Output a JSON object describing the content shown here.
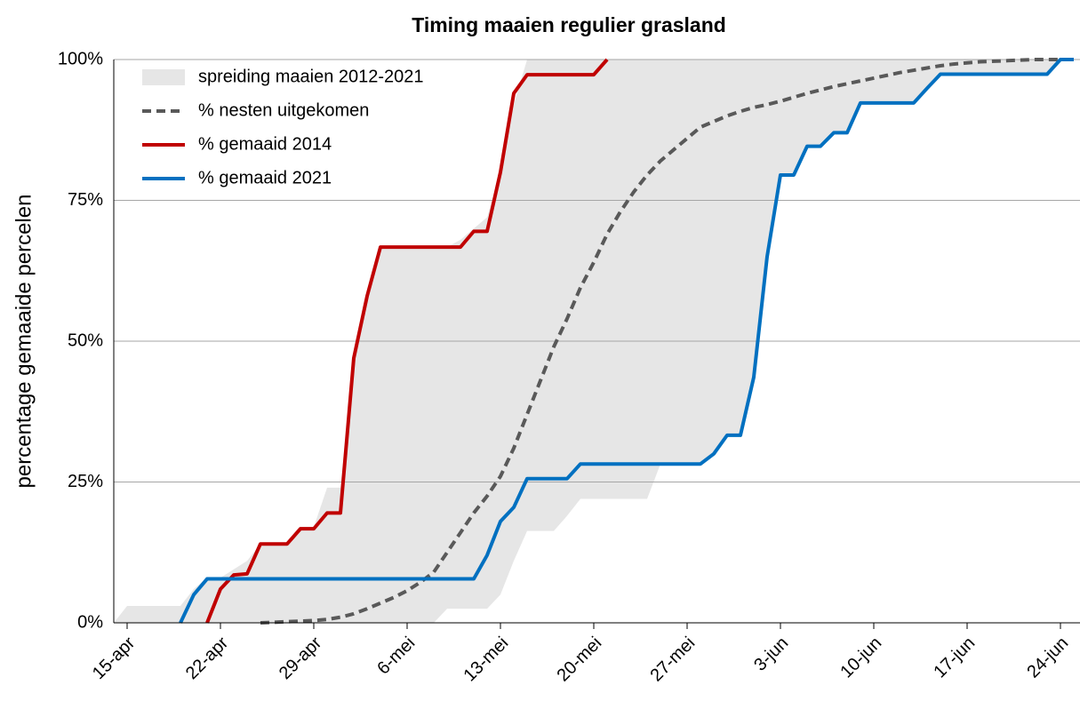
{
  "chart_data": {
    "type": "line",
    "title": "Timing maaien regulier grasland",
    "y_label": "percentage gemaaide percelen",
    "categories": [
      null,
      "15-apr",
      null,
      null,
      null,
      null,
      null,
      null,
      "22-apr",
      null,
      null,
      null,
      null,
      null,
      null,
      "29-apr",
      null,
      null,
      null,
      null,
      null,
      null,
      "6-mei",
      null,
      null,
      null,
      null,
      null,
      null,
      "13-mei",
      null,
      null,
      null,
      null,
      null,
      null,
      "20-mei",
      null,
      null,
      null,
      null,
      null,
      null,
      "27-mei",
      null,
      null,
      null,
      null,
      null,
      null,
      "3-jun",
      null,
      null,
      null,
      null,
      null,
      null,
      "10-jun",
      null,
      null,
      null,
      null,
      null,
      null,
      "17-jun",
      null,
      null,
      null,
      null,
      null,
      null,
      "24-jun",
      null
    ],
    "ylim": [
      0,
      100
    ],
    "yticks": [
      {
        "value": 0,
        "label": "0%"
      },
      {
        "value": 25,
        "label": "25%"
      },
      {
        "value": 50,
        "label": "50%"
      },
      {
        "value": 75,
        "label": "75%"
      },
      {
        "value": 100,
        "label": "100%"
      }
    ],
    "grid": true,
    "legend": "upper left",
    "series": [
      {
        "name": "spreiding maaien 2012-2021",
        "color": "#e6e6e6",
        "style": "band",
        "upper": [
          0,
          3,
          3,
          3,
          3,
          3,
          6,
          8,
          8,
          9.5,
          11,
          14,
          14,
          14,
          17,
          17,
          24,
          24,
          47,
          58,
          66.7,
          66.7,
          66.7,
          66.7,
          66.7,
          66.7,
          68,
          70,
          72,
          80,
          92,
          100,
          100,
          100,
          100,
          100,
          100,
          100,
          100,
          100,
          100,
          100,
          100,
          100,
          100,
          100,
          100,
          100,
          100,
          100,
          100,
          100,
          100,
          100,
          100,
          100,
          100,
          100,
          100,
          100,
          100,
          100,
          100,
          100,
          100,
          100,
          100,
          100,
          100,
          100,
          100,
          100,
          100
        ],
        "lower": [
          0,
          0,
          0,
          0,
          0,
          0,
          0,
          0,
          0,
          0,
          0,
          0,
          0,
          0,
          0,
          0,
          0,
          0,
          0,
          0,
          0,
          0,
          0,
          0,
          0,
          2.5,
          2.5,
          2.5,
          2.5,
          5,
          11,
          16.3,
          16.3,
          16.3,
          19,
          22,
          22,
          22,
          22,
          22,
          22,
          28.2,
          28.2,
          28.2,
          28.2,
          30,
          33.3,
          33.3,
          43.6,
          65,
          79.5,
          79.5,
          84.6,
          84.6,
          87,
          87,
          92.3,
          92.3,
          92.3,
          92.3,
          92.3,
          94.9,
          97.4,
          97.4,
          97.4,
          97.4,
          97.4,
          97.4,
          97.4,
          97.4,
          97.4,
          100,
          100
        ]
      },
      {
        "name": "% nesten uitgekomen",
        "color": "#595959",
        "style": "dashed",
        "values": [
          null,
          null,
          null,
          null,
          null,
          null,
          null,
          null,
          null,
          null,
          null,
          0,
          0.1,
          0.2,
          0.3,
          0.4,
          0.6,
          1,
          1.6,
          2.5,
          3.5,
          4.5,
          5.7,
          7.2,
          9,
          12.5,
          16,
          19.5,
          22.5,
          26,
          31,
          37,
          43,
          49,
          54,
          59.5,
          64,
          69,
          73,
          76.5,
          79.5,
          82,
          84,
          86,
          88,
          89,
          90,
          90.8,
          91.5,
          92,
          92.6,
          93.3,
          94,
          94.6,
          95.2,
          95.7,
          96.2,
          96.7,
          97.2,
          97.7,
          98.1,
          98.5,
          98.9,
          99.2,
          99.4,
          99.6,
          99.7,
          99.8,
          99.9,
          100,
          100,
          100,
          100
        ]
      },
      {
        "name": "% gemaaid 2014",
        "color": "#c00000",
        "style": "solid",
        "values": [
          null,
          null,
          null,
          null,
          null,
          null,
          null,
          0,
          6,
          8.5,
          8.7,
          14,
          14,
          14,
          16.7,
          16.7,
          19.5,
          19.5,
          47,
          58,
          66.7,
          66.7,
          66.7,
          66.7,
          66.7,
          66.7,
          66.7,
          69.5,
          69.5,
          80,
          94,
          97.3,
          97.3,
          97.3,
          97.3,
          97.3,
          97.3,
          100,
          null,
          null,
          null,
          null,
          null,
          null,
          null,
          null,
          null,
          null,
          null,
          null,
          null,
          null,
          null,
          null,
          null,
          null,
          null,
          null,
          null,
          null,
          null,
          null,
          null,
          null,
          null,
          null,
          null,
          null,
          null,
          null,
          null,
          null,
          null
        ]
      },
      {
        "name": "% gemaaid 2021",
        "color": "#0070c0",
        "style": "solid",
        "values": [
          null,
          null,
          null,
          null,
          null,
          0,
          5,
          7.8,
          7.8,
          7.8,
          7.8,
          7.8,
          7.8,
          7.8,
          7.8,
          7.8,
          7.8,
          7.8,
          7.8,
          7.8,
          7.8,
          7.8,
          7.8,
          7.8,
          7.8,
          7.8,
          7.8,
          7.8,
          12,
          18,
          20.5,
          25.6,
          25.6,
          25.6,
          25.6,
          28.2,
          28.2,
          28.2,
          28.2,
          28.2,
          28.2,
          28.2,
          28.2,
          28.2,
          28.2,
          30,
          33.3,
          33.3,
          43.6,
          65,
          79.5,
          79.5,
          84.6,
          84.6,
          87,
          87,
          92.3,
          92.3,
          92.3,
          92.3,
          92.3,
          94.9,
          97.4,
          97.4,
          97.4,
          97.4,
          97.4,
          97.4,
          97.4,
          97.4,
          97.4,
          100,
          100
        ]
      }
    ]
  }
}
